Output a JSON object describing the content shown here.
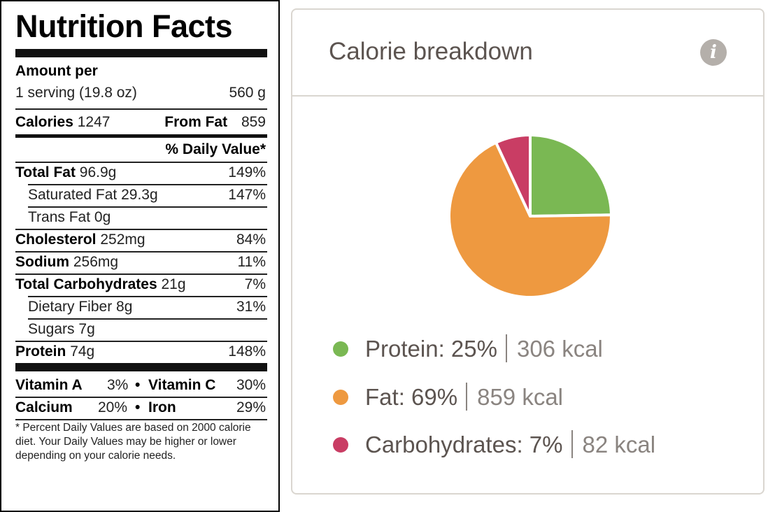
{
  "nutrition_label": {
    "title": "Nutrition Facts",
    "amount_per": "Amount per",
    "serving": "1 serving (19.8 oz)",
    "serving_weight": "560 g",
    "calories_label": "Calories",
    "calories_value": "1247",
    "from_fat_label": "From Fat",
    "from_fat_value": "859",
    "daily_value_header": "% Daily Value*",
    "rows": [
      {
        "name": "Total Fat",
        "amount": "96.9g",
        "dv": "149%"
      },
      {
        "name": "Saturated Fat",
        "amount": "29.3g",
        "dv": "147%"
      },
      {
        "name": "Trans Fat",
        "amount": "0g",
        "dv": ""
      },
      {
        "name": "Cholesterol",
        "amount": "252mg",
        "dv": "84%"
      },
      {
        "name": "Sodium",
        "amount": "256mg",
        "dv": "11%"
      },
      {
        "name": "Total Carbohydrates",
        "amount": "21g",
        "dv": "7%"
      },
      {
        "name": "Dietary Fiber",
        "amount": "8g",
        "dv": "31%"
      },
      {
        "name": "Sugars",
        "amount": "7g",
        "dv": ""
      },
      {
        "name": "Protein",
        "amount": "74g",
        "dv": "148%"
      }
    ],
    "vitamins": [
      {
        "name": "Vitamin A",
        "value": "3%"
      },
      {
        "name": "Vitamin C",
        "value": "30%"
      },
      {
        "name": "Calcium",
        "value": "20%"
      },
      {
        "name": "Iron",
        "value": "29%"
      }
    ],
    "bullet": "•",
    "footnote": "* Percent Daily Values are based on 2000 calorie diet. Your Daily Values may be higher or lower depending on your calorie needs."
  },
  "card": {
    "title": "Calorie breakdown",
    "info_icon": "info-icon",
    "info_glyph": "i"
  },
  "chart_data": {
    "type": "pie",
    "title": "Calorie breakdown",
    "slices": [
      {
        "label": "Protein",
        "percent": 25,
        "kcal": 306,
        "color": "#7ab853",
        "percent_text": "25%",
        "kcal_text": "306 kcal"
      },
      {
        "label": "Fat",
        "percent": 69,
        "kcal": 859,
        "color": "#ee9940",
        "percent_text": "69%",
        "kcal_text": "859 kcal"
      },
      {
        "label": "Carbohydrates",
        "percent": 7,
        "kcal": 82,
        "color": "#c93d64",
        "percent_text": "7%",
        "kcal_text": "82 kcal"
      }
    ],
    "legend_position": "bottom"
  }
}
